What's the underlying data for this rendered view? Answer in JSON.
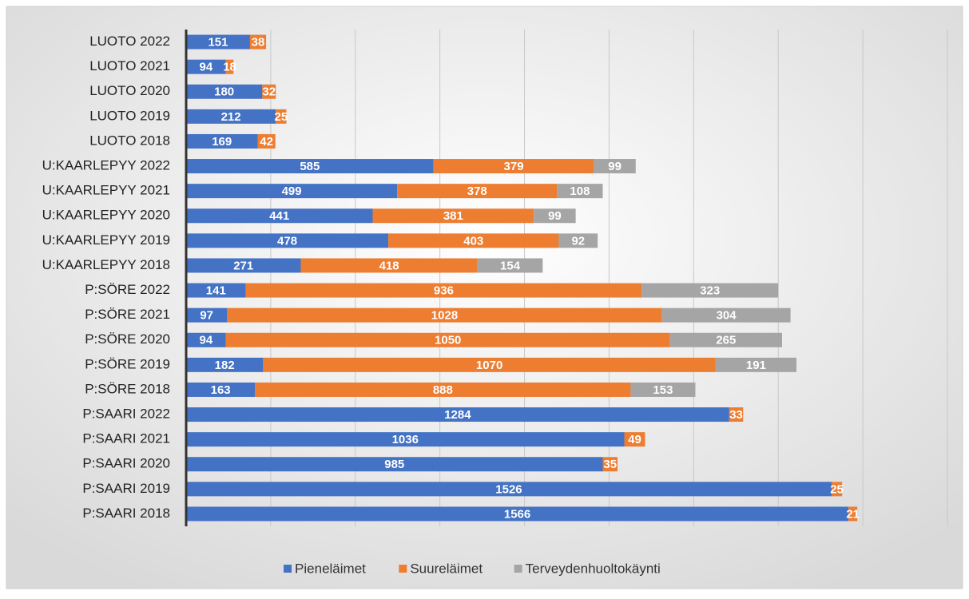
{
  "chart_data": {
    "type": "stacked_bar_horizontal",
    "categories": [
      "LUOTO 2022",
      "LUOTO 2021",
      "LUOTO 2020",
      "LUOTO 2019",
      "LUOTO 2018",
      "U:KAARLEPYY 2022",
      "U:KAARLEPYY 2021",
      "U:KAARLEPYY 2020",
      "U:KAARLEPYY 2019",
      "U:KAARLEPYY 2018",
      "P:SÖRE 2022",
      "P:SÖRE 2021",
      "P:SÖRE 2020",
      "P:SÖRE 2019",
      "P:SÖRE 2018",
      "P:SAARI 2022",
      "P:SAARI 2021",
      "P:SAARI 2020",
      "P:SAARI 2019",
      "P:SAARI 2018"
    ],
    "series": [
      {
        "name": "Pieneläimet",
        "color": "#4472c4",
        "values": [
          151,
          94,
          180,
          212,
          169,
          585,
          499,
          441,
          478,
          271,
          141,
          97,
          94,
          182,
          163,
          1284,
          1036,
          985,
          1526,
          1566
        ]
      },
      {
        "name": "Suureläimet",
        "color": "#ed7d31",
        "values": [
          38,
          18,
          32,
          25,
          42,
          379,
          378,
          381,
          403,
          418,
          936,
          1028,
          1050,
          1070,
          888,
          33,
          49,
          35,
          25,
          21
        ]
      },
      {
        "name": "Terveydenhuoltokäynti",
        "color": "#a5a5a5",
        "values": [
          null,
          null,
          null,
          null,
          null,
          99,
          108,
          99,
          92,
          154,
          323,
          304,
          265,
          191,
          153,
          null,
          null,
          null,
          null,
          null
        ]
      }
    ],
    "xlim": [
      0,
      1800
    ],
    "xticks": [
      0,
      200,
      400,
      600,
      800,
      1000,
      1200,
      1400,
      1600,
      1800
    ],
    "grid": true,
    "legend": "bottom"
  }
}
